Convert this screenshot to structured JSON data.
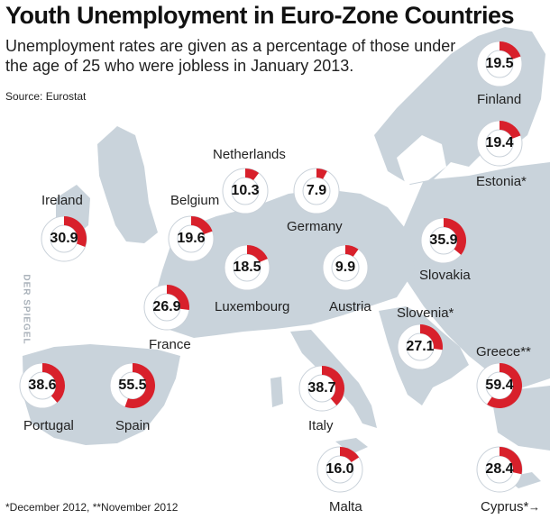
{
  "header": {
    "title": "Youth Unemployment in Euro-Zone Countries",
    "subtitle": "Unemployment rates are given as a percentage of those under the age of 25 who were jobless in January 2013.",
    "source": "Source: Eurostat",
    "footnote": "*December 2012, **November 2012",
    "watermark": "DER SPIEGEL"
  },
  "colors": {
    "accent": "#d8202b",
    "ring": "#c9d1d9",
    "land": "#c9d3db",
    "sea": "#ffffff"
  },
  "chart_data": {
    "type": "pie",
    "title": "Youth Unemployment in Euro-Zone Countries",
    "unit": "%",
    "series": [
      {
        "country": "Finland",
        "display": "19.5",
        "value": 19.5,
        "label": "Finland"
      },
      {
        "country": "Estonia",
        "display": "19.4",
        "value": 19.4,
        "label": "Estonia*"
      },
      {
        "country": "Netherlands",
        "display": "10.3",
        "value": 10.3,
        "label": "Netherlands"
      },
      {
        "country": "Germany",
        "display": "7.9",
        "value": 7.9,
        "label": "Germany"
      },
      {
        "country": "Ireland",
        "display": "30.9",
        "value": 30.9,
        "label": "Ireland"
      },
      {
        "country": "Belgium",
        "display": "19.6",
        "value": 19.6,
        "label": "Belgium"
      },
      {
        "country": "Slovakia",
        "display": "35.9",
        "value": 35.9,
        "label": "Slovakia"
      },
      {
        "country": "Luxembourg",
        "display": "18.5",
        "value": 18.5,
        "label": "Luxembourg"
      },
      {
        "country": "Austria",
        "display": "9.9",
        "value": 9.9,
        "label": "Austria"
      },
      {
        "country": "France",
        "display": "26.9",
        "value": 26.9,
        "label": "France"
      },
      {
        "country": "Slovenia",
        "display": "27.1",
        "value": 27.1,
        "label": "Slovenia*"
      },
      {
        "country": "Greece",
        "display": "59.4",
        "value": 59.4,
        "label": "Greece**"
      },
      {
        "country": "Portugal",
        "display": "38.6",
        "value": 38.6,
        "label": "Portugal"
      },
      {
        "country": "Spain",
        "display": "55.5",
        "value": 55.5,
        "label": "Spain"
      },
      {
        "country": "Italy",
        "display": "38.7",
        "value": 38.7,
        "label": "Italy"
      },
      {
        "country": "Malta",
        "display": "16.0",
        "value": 16.0,
        "label": "Malta"
      },
      {
        "country": "Cyprus",
        "display": "28.4",
        "value": 28.4,
        "label": "Cyprus*"
      }
    ]
  }
}
